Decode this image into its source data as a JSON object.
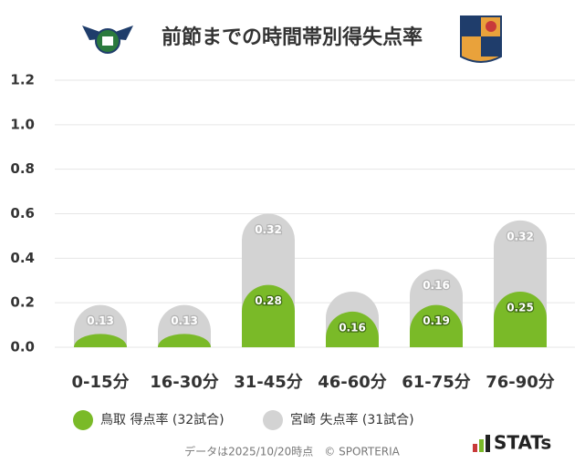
{
  "chart_data": {
    "type": "bar",
    "stacked": true,
    "title": "前節までの時間帯別得失点率",
    "categories": [
      "0-15分",
      "16-30分",
      "31-45分",
      "46-60分",
      "61-75分",
      "76-90分"
    ],
    "series": [
      {
        "name": "鳥取 得点率 (32試合)",
        "color": "#7aba28",
        "values": [
          0.06,
          0.06,
          0.28,
          0.16,
          0.19,
          0.25
        ]
      },
      {
        "name": "宮崎 失点率 (31試合)",
        "color": "#d3d3d3",
        "values": [
          0.13,
          0.13,
          0.32,
          0.09,
          0.16,
          0.32
        ]
      }
    ],
    "ylim": [
      0,
      1.2
    ],
    "yticks": [
      {
        "value": 0,
        "label": "0.0"
      },
      0.2,
      0.4,
      0.6,
      0.8,
      {
        "value": 1,
        "label": "1.0"
      },
      1.2
    ],
    "grid": true,
    "footnote": "データは2025/10/20時点　© SPORTERIA",
    "brand": "STATs"
  }
}
